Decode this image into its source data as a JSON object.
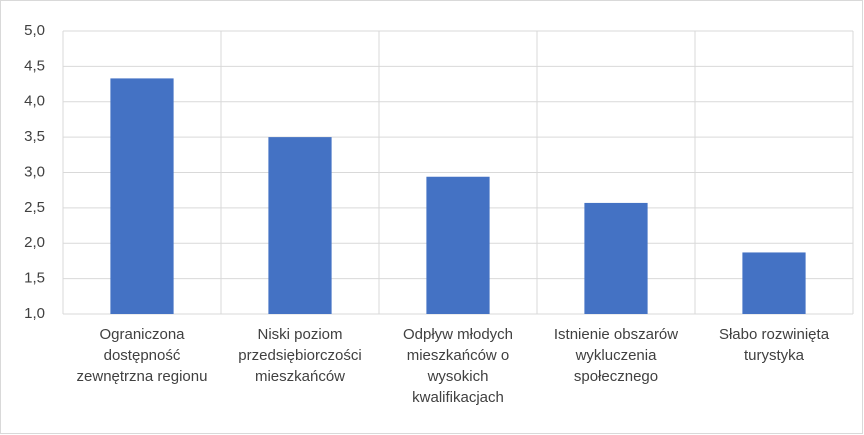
{
  "chart_data": {
    "type": "bar",
    "categories": [
      "Ograniczona dostępność zewnętrzna regionu",
      "Niski poziom przedsiębiorczości mieszkańców",
      "Odpływ młodych mieszkańców o wysokich kwalifikacjach",
      "Istnienie obszarów wykluczenia społecznego",
      "Słabo rozwinięta turystyka"
    ],
    "values": [
      4.33,
      3.5,
      2.94,
      2.57,
      1.87
    ],
    "color": "#4472c4",
    "ylim": [
      1.0,
      5.0
    ],
    "yticks": [
      {
        "value": 1.0,
        "label": "1,0"
      },
      {
        "value": 1.5,
        "label": "1,5"
      },
      {
        "value": 2.0,
        "label": "2,0"
      },
      {
        "value": 2.5,
        "label": "2,5"
      },
      {
        "value": 3.0,
        "label": "3,0"
      },
      {
        "value": 3.5,
        "label": "3,5"
      },
      {
        "value": 4.0,
        "label": "4,0"
      },
      {
        "value": 4.5,
        "label": "4,5"
      },
      {
        "value": 5.0,
        "label": "5,0"
      }
    ],
    "grid": true
  }
}
